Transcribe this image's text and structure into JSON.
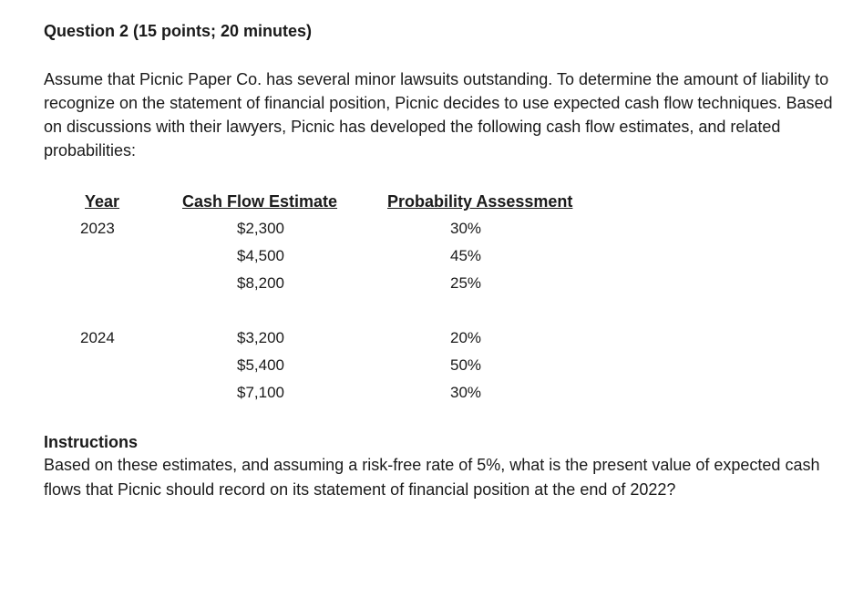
{
  "question": {
    "heading": "Question 2 (15 points; 20 minutes)",
    "intro": "Assume that Picnic Paper Co. has several minor lawsuits outstanding. To determine the amount of liability to recognize on the statement of financial position, Picnic decides to use expected cash flow techniques. Based on discussions with their lawyers, Picnic has developed the following cash flow estimates, and related probabilities:"
  },
  "table": {
    "headers": {
      "year": "Year",
      "cash_flow": "Cash Flow Estimate",
      "probability": "Probability Assessment"
    },
    "groups": [
      {
        "year": "2023",
        "rows": [
          {
            "cash_flow": "$2,300",
            "probability": "30%"
          },
          {
            "cash_flow": "$4,500",
            "probability": "45%"
          },
          {
            "cash_flow": "$8,200",
            "probability": "25%"
          }
        ]
      },
      {
        "year": "2024",
        "rows": [
          {
            "cash_flow": "$3,200",
            "probability": "20%"
          },
          {
            "cash_flow": "$5,400",
            "probability": "50%"
          },
          {
            "cash_flow": "$7,100",
            "probability": "30%"
          }
        ]
      }
    ]
  },
  "instructions": {
    "heading": "Instructions",
    "body": "Based on these estimates, and assuming a risk-free rate of 5%, what is the present value of expected cash flows that Picnic should record on its statement of financial position at the end of 2022?"
  }
}
